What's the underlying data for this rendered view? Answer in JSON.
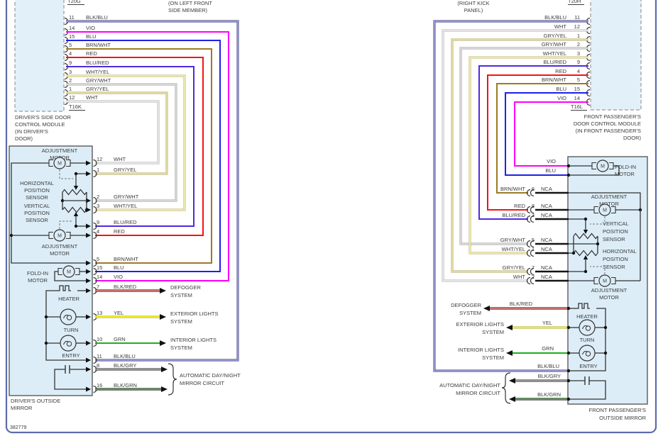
{
  "diagram": {
    "footer_code": "382779",
    "nca_label": "NCA",
    "left": {
      "module": {
        "top_connector": "T20G",
        "bottom_connector": "T16K",
        "location": [
          "(ON LEFT FRONT",
          "SIDE MEMBER)"
        ],
        "name": [
          "DRIVER'S SIDE DOOR",
          "CONTROL MODULE",
          "(IN DRIVER'S",
          "DOOR)"
        ],
        "pins": [
          {
            "num": "11",
            "color": "BLK/BLU"
          },
          {
            "num": "14",
            "color": "VIO"
          },
          {
            "num": "15",
            "color": "BLU"
          },
          {
            "num": "5",
            "color": "BRN/WHT"
          },
          {
            "num": "4",
            "color": "RED"
          },
          {
            "num": "9",
            "color": "BLU/RED"
          },
          {
            "num": "3",
            "color": "WHT/YEL"
          },
          {
            "num": "2",
            "color": "GRY/WHT"
          },
          {
            "num": "1",
            "color": "GRY/YEL"
          },
          {
            "num": "12",
            "color": "WHT"
          }
        ]
      },
      "mirror": {
        "name": [
          "DRIVER'S OUTSIDE",
          "MIRROR"
        ],
        "pins": [
          {
            "num": "12",
            "color": "WHT"
          },
          {
            "num": "1",
            "color": "GRY/YEL"
          },
          {
            "num": "2",
            "color": "GRY/WHT"
          },
          {
            "num": "3",
            "color": "WHT/YEL"
          },
          {
            "num": "9",
            "color": "BLU/RED"
          },
          {
            "num": "4",
            "color": "RED"
          },
          {
            "num": "5",
            "color": "BRN/WHT"
          },
          {
            "num": "15",
            "color": "BLU"
          },
          {
            "num": "14",
            "color": "VIO"
          },
          {
            "num": "7",
            "color": "BLK/RED"
          },
          {
            "num": "13",
            "color": "YEL"
          },
          {
            "num": "10",
            "color": "GRN"
          },
          {
            "num": "11",
            "color": "BLK/BLU"
          },
          {
            "num": "8",
            "color": "BLK/GRY"
          },
          {
            "num": "16",
            "color": "BLK/GRN"
          }
        ],
        "components": {
          "adjustment_motor_top": [
            "ADJUSTMENT",
            "MOTOR"
          ],
          "horizontal_sensor": [
            "HORIZONTAL",
            "POSITION",
            "SENSOR"
          ],
          "vertical_sensor": [
            "VERTICAL",
            "POSITION",
            "SENSOR"
          ],
          "adjustment_motor_bottom": [
            "ADJUSTMENT",
            "MOTOR"
          ],
          "fold_in_motor": [
            "FOLD-IN",
            "MOTOR"
          ],
          "heater": "HEATER",
          "turn": "TURN",
          "entry": "ENTRY"
        }
      },
      "systems": {
        "defogger": [
          "DEFOGGER",
          "SYSTEM"
        ],
        "exterior": [
          "EXTERIOR LIGHTS",
          "SYSTEM"
        ],
        "interior": [
          "INTERIOR LIGHTS",
          "SYSTEM"
        ],
        "auto_mirror": [
          "AUTOMATIC DAY/NIGHT",
          "MIRROR CIRCUIT"
        ]
      }
    },
    "right": {
      "module": {
        "top_connector": "T20H",
        "bottom_connector": "T16L",
        "location": [
          "(RIGHT KICK",
          "PANEL)"
        ],
        "name": [
          "FRONT PASSENGER'S",
          "DOOR CONTROL MODULE",
          "(IN FRONT PASSENGER'S",
          "DOOR)"
        ],
        "pins": [
          {
            "num": "11",
            "color": "BLK/BLU"
          },
          {
            "num": "12",
            "color": "WHT"
          },
          {
            "num": "1",
            "color": "GRY/YEL"
          },
          {
            "num": "2",
            "color": "GRY/WHT"
          },
          {
            "num": "3",
            "color": "WHT/YEL"
          },
          {
            "num": "9",
            "color": "BLU/RED"
          },
          {
            "num": "4",
            "color": "RED"
          },
          {
            "num": "5",
            "color": "BRN/WHT"
          },
          {
            "num": "15",
            "color": "BLU"
          },
          {
            "num": "14",
            "color": "VIO"
          }
        ]
      },
      "mirror": {
        "name": [
          "FRONT PASSENGER'S",
          "OUTSIDE MIRROR"
        ],
        "direct_pins": [
          {
            "color": "VIO"
          },
          {
            "color": "BLU"
          }
        ],
        "nca_pins": [
          {
            "num": "6",
            "color": "BRN/WHT"
          },
          {
            "num": "8",
            "color": "RED"
          },
          {
            "num": "3",
            "color": "BLU/RED"
          },
          {
            "num": "5",
            "color": "GRY/WHT"
          },
          {
            "num": "1",
            "color": "WHT/YEL"
          },
          {
            "num": "7",
            "color": "GRY/YEL"
          },
          {
            "num": "2",
            "color": "WHT"
          }
        ],
        "lower_pins": [
          {
            "color": "BLK/RED"
          },
          {
            "color": "YEL"
          },
          {
            "color": "GRN"
          },
          {
            "color": "BLK/BLU"
          },
          {
            "color": "BLK/GRY"
          },
          {
            "color": "BLK/GRN"
          }
        ],
        "components": {
          "fold_in_motor": [
            "FOLD-IN",
            "MOTOR"
          ],
          "adjustment_motor_top": [
            "ADJUSTMENT",
            "MOTOR"
          ],
          "vertical_sensor": [
            "VERTICAL",
            "POSITION",
            "SENSOR"
          ],
          "horizontal_sensor": [
            "HORIZONTAL",
            "POSITION",
            "SENSOR"
          ],
          "adjustment_motor_bottom": [
            "ADJUSTMENT",
            "MOTOR"
          ],
          "heater": "HEATER",
          "turn": "TURN",
          "entry": "ENTRY"
        }
      },
      "systems": {
        "defogger": [
          "DEFOGGER",
          "SYSTEM"
        ],
        "exterior": [
          "EXTERIOR LIGHTS",
          "SYSTEM"
        ],
        "interior": [
          "INTERIOR LIGHTS",
          "SYSTEM"
        ],
        "auto_mirror": [
          "AUTOMATIC DAY/NIGHT",
          "MIRROR CIRCUIT"
        ]
      }
    },
    "palette": {
      "BLK/BLU": {
        "core": "#9a9ace",
        "edge": "#5e5e9a"
      },
      "VIO": {
        "core": "#fb00fb"
      },
      "BLU": {
        "core": "#2020e8"
      },
      "BRN/WHT": {
        "core": "#9d7b25"
      },
      "RED": {
        "core": "#f31414"
      },
      "BLU/RED": {
        "core": "#4f2ae0"
      },
      "WHT/YEL": {
        "core": "#f2ecaa",
        "edge": "#c6c08c"
      },
      "GRY/WHT": {
        "core": "#dadada",
        "edge": "#b2b2b2"
      },
      "GRY/YEL": {
        "core": "#e5dfa2",
        "edge": "#bdb884"
      },
      "WHT": {
        "core": "#e9e9e9",
        "edge": "#bfbfbf"
      },
      "BLK/RED": {
        "core": "#d97a7a",
        "edge": "#4a2828"
      },
      "YEL": {
        "core": "#f8f400",
        "edge": "#b9b66a"
      },
      "GRN": {
        "core": "#1fae1f"
      },
      "BLK/GRY": {
        "core": "#9a9a9a",
        "edge": "#4a4a4a"
      },
      "BLK/GRN": {
        "core": "#5aa65a",
        "edge": "#2e2e2e"
      },
      "NCA": {
        "core": "#141414"
      }
    },
    "ui_colors": {
      "page_border": "#5c6cae",
      "module_fill": "#e2f1f9",
      "mirror_fill": "#dcedf7",
      "line": "#333333",
      "text": "#3c3c3c"
    }
  }
}
